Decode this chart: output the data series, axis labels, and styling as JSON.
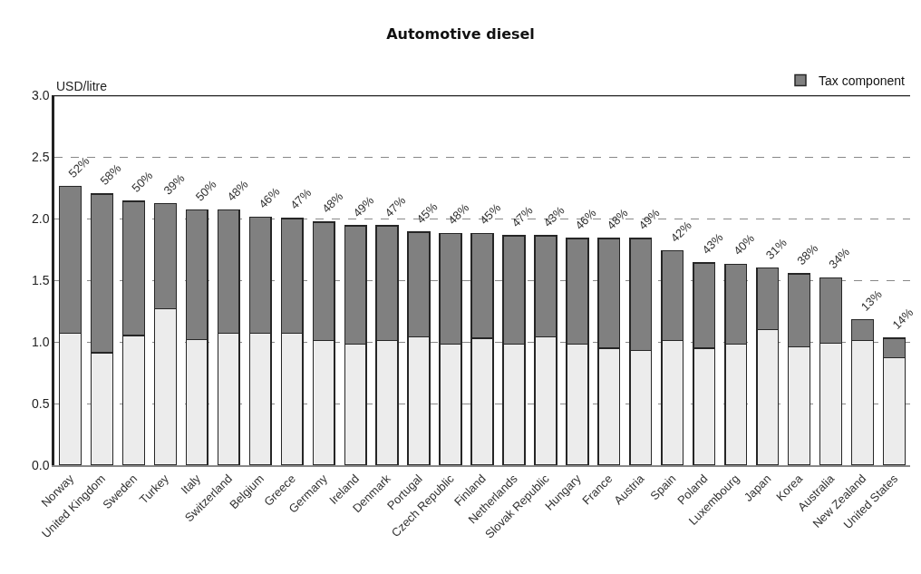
{
  "chart_data": {
    "type": "bar",
    "title": "Automotive diesel",
    "ylabel": "USD/litre",
    "stacked": true,
    "categories": [
      "Norway",
      "United Kingdom",
      "Sweden",
      "Turkey",
      "Italy",
      "Switzerland",
      "Belgium",
      "Greece",
      "Germany",
      "Ireland",
      "Denmark",
      "Portugal",
      "Czech Republic",
      "Finland",
      "Netherlands",
      "Slovak Republic",
      "Hungary",
      "France",
      "Austria",
      "Spain",
      "Poland",
      "Luxembourg",
      "Japan",
      "Korea",
      "Australia",
      "New Zealand",
      "United States"
    ],
    "series": [
      {
        "color": "#ececec",
        "values": [
          1.07,
          0.91,
          1.05,
          1.27,
          1.02,
          1.07,
          1.07,
          1.07,
          1.01,
          0.98,
          1.01,
          1.04,
          0.98,
          1.03,
          0.98,
          1.04,
          0.98,
          0.95,
          0.93,
          1.01,
          0.95,
          0.98,
          1.1,
          0.96,
          0.99,
          1.01,
          0.87
        ]
      },
      {
        "name": "Tax component",
        "color": "#808080",
        "values": [
          1.19,
          1.29,
          1.09,
          0.85,
          1.05,
          1.0,
          0.94,
          0.93,
          0.96,
          0.96,
          0.93,
          0.85,
          0.9,
          0.85,
          0.88,
          0.82,
          0.86,
          0.89,
          0.91,
          0.73,
          0.69,
          0.65,
          0.5,
          0.59,
          0.53,
          0.17,
          0.16
        ]
      }
    ],
    "annotations": [
      {
        "text": "52%",
        "x": "Norway",
        "y": 2.26
      },
      {
        "text": "58%",
        "x": "United Kingdom",
        "y": 2.2
      },
      {
        "text": "50%",
        "x": "Sweden",
        "y": 2.14
      },
      {
        "text": "39%",
        "x": "Turkey",
        "y": 2.12
      },
      {
        "text": "50%",
        "x": "Italy",
        "y": 2.07
      },
      {
        "text": "48%",
        "x": "Switzerland",
        "y": 2.07
      },
      {
        "text": "46%",
        "x": "Belgium",
        "y": 2.01
      },
      {
        "text": "47%",
        "x": "Greece",
        "y": 2.0
      },
      {
        "text": "48%",
        "x": "Germany",
        "y": 1.97
      },
      {
        "text": "49%",
        "x": "Ireland",
        "y": 1.94
      },
      {
        "text": "47%",
        "x": "Denmark",
        "y": 1.94
      },
      {
        "text": "45%",
        "x": "Portugal",
        "y": 1.89
      },
      {
        "text": "48%",
        "x": "Czech Republic",
        "y": 1.88
      },
      {
        "text": "45%",
        "x": "Finland",
        "y": 1.88
      },
      {
        "text": "47%",
        "x": "Netherlands",
        "y": 1.86
      },
      {
        "text": "43%",
        "x": "Slovak Republic",
        "y": 1.86
      },
      {
        "text": "46%",
        "x": "Hungary",
        "y": 1.84
      },
      {
        "text": "48%",
        "x": "France",
        "y": 1.84
      },
      {
        "text": "49%",
        "x": "Austria",
        "y": 1.84
      },
      {
        "text": "42%",
        "x": "Spain",
        "y": 1.74
      },
      {
        "text": "43%",
        "x": "Poland",
        "y": 1.64
      },
      {
        "text": "40%",
        "x": "Luxembourg",
        "y": 1.63
      },
      {
        "text": "31%",
        "x": "Japan",
        "y": 1.6
      },
      {
        "text": "38%",
        "x": "Korea",
        "y": 1.55
      },
      {
        "text": "34%",
        "x": "Australia",
        "y": 1.52
      },
      {
        "text": "13%",
        "x": "New Zealand",
        "y": 1.18
      },
      {
        "text": "14%",
        "x": "United States",
        "y": 1.03
      }
    ],
    "ylim": [
      0,
      3.0
    ],
    "yticks": [
      {
        "value": 0,
        "label": "0.0"
      },
      0.5,
      {
        "value": 1,
        "label": "1.0"
      },
      1.5,
      {
        "value": 2,
        "label": "2.0"
      },
      2.5,
      {
        "value": 3,
        "label": "3.0"
      }
    ],
    "grid": "y",
    "line_style": "dashed",
    "legend": "top right"
  }
}
